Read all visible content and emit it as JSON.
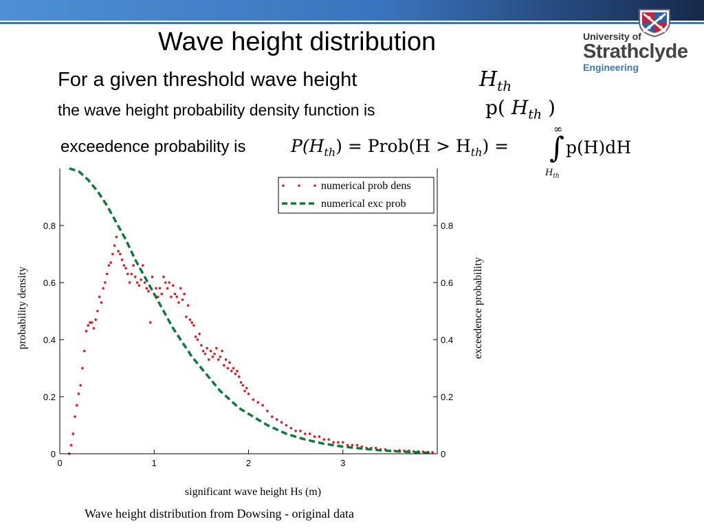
{
  "slide": {
    "title": "Wave height distribution",
    "line1": "For a given threshold wave height",
    "line2": "the wave height probability density function is",
    "line3": "exceedence probability is",
    "caption": "Wave height distribution from Dowsing - original data"
  },
  "logo": {
    "line1": "University of",
    "line2": "Strathclyde",
    "line3": "Engineering"
  },
  "math": {
    "h_th": "H",
    "sub_th": "th",
    "pdf_prefix": "p(",
    "pdf_suffix": ")",
    "exc_lhs": "P(H",
    "exc_mid": ") = Prob(H > H",
    "exc_eq": ") =",
    "integral_upper": "∞",
    "integral_lower_H": "H",
    "integral_body": "p(H)dH"
  },
  "colors": {
    "header_dark": "#1f3b67",
    "header_light": "#4f8fd6",
    "density": "#e8141e",
    "exceedence": "#0a7a3a"
  },
  "chart_data": {
    "type": "scatter",
    "xlabel": "significant wave height Hs (m)",
    "ylabel_left": "probability density",
    "ylabel_right": "exceedence probability",
    "xlim": [
      0,
      4
    ],
    "ylim": [
      0,
      1
    ],
    "x_ticks": [
      0,
      1,
      2,
      3
    ],
    "y_ticks": [
      0,
      0.2,
      0.4,
      0.6,
      0.8
    ],
    "y_tick_labels": [
      "0",
      "0.2",
      "0.4",
      "0.6",
      "0.8"
    ],
    "legend_position": "top-right",
    "series": [
      {
        "name": "numerical prob dens",
        "kind": "points",
        "x": [
          0.1,
          0.12,
          0.14,
          0.16,
          0.18,
          0.2,
          0.22,
          0.24,
          0.26,
          0.28,
          0.3,
          0.32,
          0.34,
          0.36,
          0.38,
          0.4,
          0.42,
          0.44,
          0.46,
          0.48,
          0.5,
          0.52,
          0.54,
          0.56,
          0.58,
          0.6,
          0.62,
          0.64,
          0.66,
          0.68,
          0.7,
          0.72,
          0.74,
          0.76,
          0.78,
          0.8,
          0.82,
          0.84,
          0.86,
          0.88,
          0.9,
          0.92,
          0.94,
          0.96,
          0.98,
          1.0,
          1.02,
          1.04,
          1.06,
          1.08,
          1.1,
          1.12,
          1.14,
          1.16,
          1.18,
          1.2,
          1.22,
          1.24,
          1.26,
          1.28,
          1.3,
          1.32,
          1.34,
          1.36,
          1.38,
          1.4,
          1.42,
          1.44,
          1.46,
          1.48,
          1.5,
          1.52,
          1.54,
          1.56,
          1.58,
          1.6,
          1.62,
          1.64,
          1.66,
          1.68,
          1.7,
          1.72,
          1.74,
          1.76,
          1.78,
          1.8,
          1.82,
          1.84,
          1.86,
          1.88,
          1.9,
          1.92,
          1.94,
          1.96,
          1.98,
          2.0,
          2.05,
          2.1,
          2.15,
          2.2,
          2.25,
          2.3,
          2.35,
          2.4,
          2.45,
          2.5,
          2.55,
          2.6,
          2.65,
          2.7,
          2.75,
          2.8,
          2.85,
          2.9,
          2.95,
          3.0,
          3.05,
          3.1,
          3.15,
          3.2,
          3.25,
          3.3,
          3.35,
          3.4,
          3.45,
          3.5,
          3.55,
          3.6,
          3.65,
          3.7,
          3.75,
          3.8,
          3.85,
          3.9,
          3.95
        ],
        "y": [
          0.0,
          0.03,
          0.07,
          0.13,
          0.17,
          0.21,
          0.24,
          0.3,
          0.36,
          0.43,
          0.45,
          0.46,
          0.46,
          0.44,
          0.47,
          0.5,
          0.55,
          0.53,
          0.58,
          0.6,
          0.63,
          0.66,
          0.67,
          0.7,
          0.73,
          0.76,
          0.71,
          0.7,
          0.68,
          0.66,
          0.65,
          0.63,
          0.6,
          0.63,
          0.66,
          0.62,
          0.6,
          0.59,
          0.61,
          0.66,
          0.6,
          0.58,
          0.57,
          0.46,
          0.62,
          0.56,
          0.58,
          0.55,
          0.58,
          0.56,
          0.62,
          0.6,
          0.58,
          0.6,
          0.55,
          0.59,
          0.56,
          0.55,
          0.53,
          0.58,
          0.54,
          0.56,
          0.48,
          0.52,
          0.47,
          0.46,
          0.45,
          0.41,
          0.4,
          0.42,
          0.38,
          0.36,
          0.35,
          0.37,
          0.33,
          0.36,
          0.34,
          0.35,
          0.37,
          0.33,
          0.34,
          0.36,
          0.31,
          0.33,
          0.3,
          0.32,
          0.29,
          0.3,
          0.28,
          0.29,
          0.27,
          0.25,
          0.24,
          0.22,
          0.23,
          0.21,
          0.19,
          0.18,
          0.17,
          0.15,
          0.13,
          0.12,
          0.11,
          0.1,
          0.09,
          0.08,
          0.08,
          0.07,
          0.07,
          0.06,
          0.06,
          0.05,
          0.05,
          0.04,
          0.04,
          0.04,
          0.03,
          0.03,
          0.03,
          0.025,
          0.02,
          0.02,
          0.02,
          0.015,
          0.015,
          0.01,
          0.01,
          0.012,
          0.01,
          0.01,
          0.008,
          0.008,
          0.007,
          0.006,
          0.005
        ]
      },
      {
        "name": "numerical exc prob",
        "kind": "dashed-line",
        "x": [
          0.1,
          0.2,
          0.3,
          0.4,
          0.5,
          0.6,
          0.7,
          0.8,
          0.9,
          1.0,
          1.1,
          1.2,
          1.3,
          1.4,
          1.5,
          1.6,
          1.7,
          1.8,
          1.9,
          2.0,
          2.2,
          2.4,
          2.6,
          2.8,
          3.0,
          3.2,
          3.4,
          3.6,
          3.8,
          3.95
        ],
        "y": [
          1.0,
          0.99,
          0.96,
          0.92,
          0.87,
          0.81,
          0.75,
          0.68,
          0.62,
          0.56,
          0.5,
          0.44,
          0.39,
          0.34,
          0.3,
          0.26,
          0.22,
          0.19,
          0.16,
          0.14,
          0.1,
          0.07,
          0.05,
          0.035,
          0.025,
          0.018,
          0.012,
          0.008,
          0.005,
          0.003
        ]
      }
    ]
  }
}
